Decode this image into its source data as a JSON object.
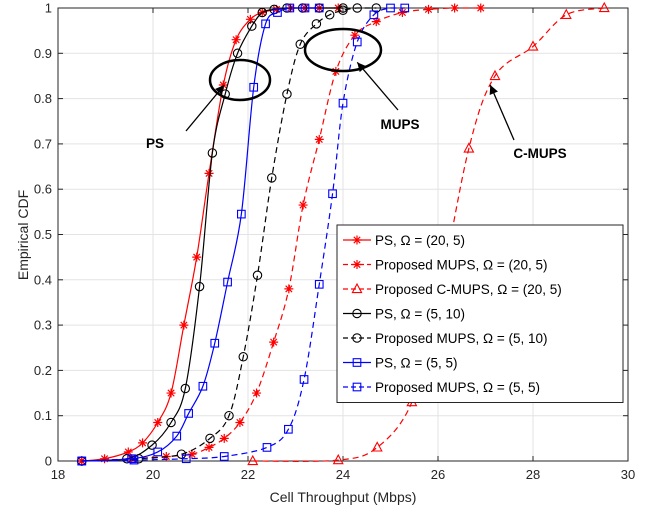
{
  "chart_data": {
    "type": "line",
    "xlabel": "Cell Throughput (Mbps)",
    "ylabel": "Empirical CDF",
    "xlim": [
      18,
      30
    ],
    "ylim": [
      0,
      1
    ],
    "xticks": [
      "18",
      "20",
      "22",
      "24",
      "26",
      "28",
      "30"
    ],
    "yticks": [
      "0",
      "0.1",
      "0.2",
      "0.3",
      "0.4",
      "0.5",
      "0.6",
      "0.7",
      "0.8",
      "0.9",
      "1"
    ],
    "grid": true,
    "legend_position": "bottom-right",
    "series": [
      {
        "name": "PS, Ω = (20, 5)",
        "color": "#ff0000",
        "dash": "solid",
        "marker": "star",
        "x": [
          18.5,
          18.98,
          19.48,
          19.78,
          20.1,
          20.38,
          20.65,
          20.92,
          21.18,
          21.48,
          21.75,
          22.05,
          22.3,
          22.6,
          22.9,
          23.2,
          23.5,
          23.9
        ],
        "y": [
          0,
          0.005,
          0.02,
          0.04,
          0.085,
          0.15,
          0.3,
          0.45,
          0.635,
          0.83,
          0.93,
          0.975,
          0.99,
          0.997,
          1,
          1,
          1,
          1
        ]
      },
      {
        "name": "Proposed MUPS, Ω = (20, 5)",
        "color": "#ff0000",
        "dash": "dashed",
        "marker": "star",
        "x": [
          18.5,
          19.55,
          20.28,
          20.82,
          21.18,
          21.5,
          21.83,
          22.18,
          22.54,
          22.86,
          23.16,
          23.5,
          23.85,
          24.25,
          24.7,
          25.25,
          25.8,
          26.35,
          26.9
        ],
        "y": [
          0,
          0.005,
          0.01,
          0.015,
          0.03,
          0.05,
          0.085,
          0.15,
          0.2625,
          0.38,
          0.565,
          0.71,
          0.86,
          0.94,
          0.97,
          0.99,
          0.997,
          1,
          1
        ]
      },
      {
        "name": "Proposed C-MUPS, Ω = (20, 5)",
        "color": "#ff0000",
        "dash": "dashed",
        "marker": "triangle",
        "x": [
          22.1,
          23.9,
          24.72,
          25.45,
          26.0,
          26.65,
          27.2,
          28.0,
          28.7,
          29.5
        ],
        "y": [
          0,
          0.002,
          0.03,
          0.13,
          0.35,
          0.69,
          0.85,
          0.915,
          0.985,
          1
        ]
      },
      {
        "name": "PS, Ω = (5, 10)",
        "color": "#000000",
        "dash": "solid",
        "marker": "circle",
        "x": [
          18.5,
          19.45,
          19.98,
          20.38,
          20.68,
          20.98,
          21.25,
          21.52,
          21.78,
          22.08,
          22.3,
          22.55,
          22.82,
          23.15,
          23.5,
          24.0
        ],
        "y": [
          0,
          0.005,
          0.035,
          0.085,
          0.16,
          0.385,
          0.68,
          0.81,
          0.9,
          0.96,
          0.99,
          0.997,
          1,
          1,
          1,
          1
        ]
      },
      {
        "name": "Proposed MUPS, Ω = (5, 10)",
        "color": "#000000",
        "dash": "dashed",
        "marker": "circle",
        "x": [
          18.5,
          19.7,
          20.6,
          21.2,
          21.6,
          21.9,
          22.2,
          22.5,
          22.82,
          23.1,
          23.44,
          23.72,
          24.0,
          24.3,
          24.7
        ],
        "y": [
          0,
          0.005,
          0.015,
          0.05,
          0.1,
          0.23,
          0.41,
          0.625,
          0.81,
          0.92,
          0.965,
          0.985,
          0.995,
          1,
          1
        ]
      },
      {
        "name": "PS, Ω = (5, 5)",
        "color": "#0000ff",
        "dash": "solid",
        "marker": "square",
        "x": [
          18.5,
          19.55,
          20.1,
          20.5,
          20.75,
          21.05,
          21.3,
          21.57,
          21.86,
          22.12,
          22.37,
          22.62,
          22.88,
          23.2,
          23.5
        ],
        "y": [
          0,
          0.005,
          0.02,
          0.055,
          0.105,
          0.165,
          0.26,
          0.395,
          0.545,
          0.825,
          0.965,
          0.99,
          1,
          1,
          1
        ]
      },
      {
        "name": "Proposed MUPS, Ω = (5, 5)",
        "color": "#0000ff",
        "dash": "dashed",
        "marker": "square",
        "x": [
          18.5,
          19.6,
          20.7,
          21.5,
          22.4,
          22.85,
          23.18,
          23.5,
          23.78,
          24.0,
          24.3,
          24.65,
          25.0,
          25.3
        ],
        "y": [
          0,
          0.002,
          0.005,
          0.01,
          0.03,
          0.07,
          0.18,
          0.39,
          0.59,
          0.79,
          0.925,
          0.985,
          1,
          1
        ]
      }
    ],
    "annotations": [
      {
        "label": "PS",
        "target_x": 21.5,
        "target_y": 0.83
      },
      {
        "label": "MUPS",
        "target_x": 24.3,
        "target_y": 0.88
      },
      {
        "label": "C-MUPS",
        "target_x": 27.1,
        "target_y": 0.83
      }
    ]
  }
}
